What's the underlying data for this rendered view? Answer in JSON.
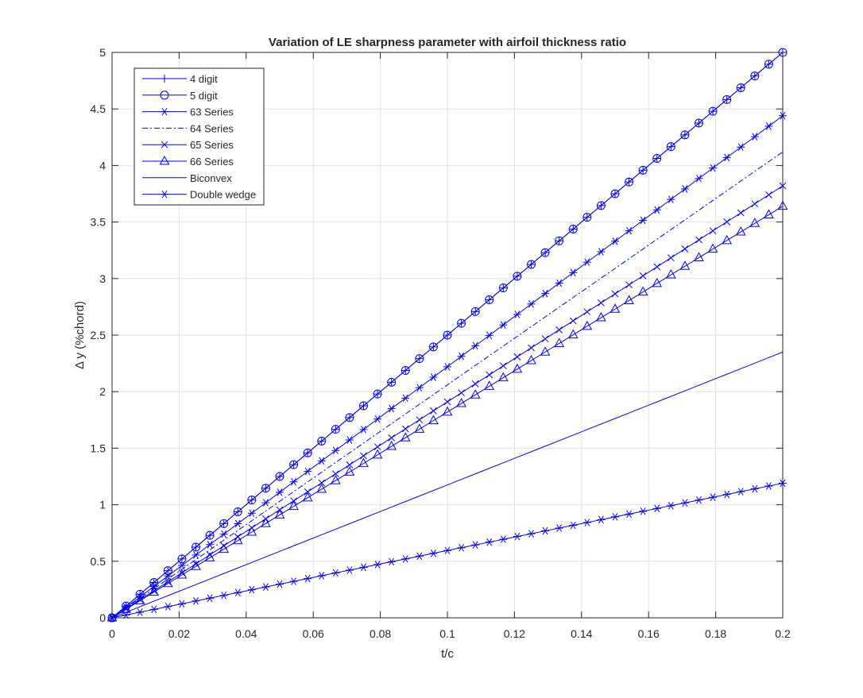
{
  "chart_data": {
    "type": "line",
    "title": "Variation of LE sharpness parameter with airfoil thickness ratio",
    "xlabel": "t/c",
    "ylabel": "Δ y (%chord)",
    "xlim": [
      0,
      0.2
    ],
    "ylim": [
      0,
      5
    ],
    "xticks": [
      0,
      0.02,
      0.04,
      0.06,
      0.08,
      0.1,
      0.12,
      0.14,
      0.16,
      0.18,
      0.2
    ],
    "xtick_labels": [
      "0",
      "0.02",
      "0.04",
      "0.06",
      "0.08",
      "0.1",
      "0.12",
      "0.14",
      "0.16",
      "0.18",
      "0.2"
    ],
    "yticks": [
      0,
      0.5,
      1,
      1.5,
      2,
      2.5,
      3,
      3.5,
      4,
      4.5,
      5
    ],
    "ytick_labels": [
      "0",
      "0.5",
      "1",
      "1.5",
      "2",
      "2.5",
      "3",
      "3.5",
      "4",
      "4.5",
      "5"
    ],
    "grid": true,
    "legend_position": "top-left",
    "line_color": "#0000ff",
    "x_start": 0,
    "x_end": 0.2,
    "point_count": 49,
    "series": [
      {
        "name": "4 digit",
        "marker": "plus",
        "linestyle": "solid",
        "slope": 25.0
      },
      {
        "name": "5 digit",
        "marker": "circle",
        "linestyle": "solid",
        "slope": 25.0
      },
      {
        "name": "63 Series",
        "marker": "asterisk",
        "linestyle": "solid",
        "slope": 22.2
      },
      {
        "name": "64 Series",
        "marker": "none",
        "linestyle": "dashdot",
        "slope": 20.6
      },
      {
        "name": "65 Series",
        "marker": "x",
        "linestyle": "solid",
        "slope": 19.1
      },
      {
        "name": "66 Series",
        "marker": "triangle",
        "linestyle": "solid",
        "slope": 18.2
      },
      {
        "name": "Biconvex",
        "marker": "none",
        "linestyle": "solid",
        "slope": 11.75
      },
      {
        "name": "Double wedge",
        "marker": "asterisk",
        "linestyle": "solid",
        "slope": 5.95
      }
    ]
  }
}
